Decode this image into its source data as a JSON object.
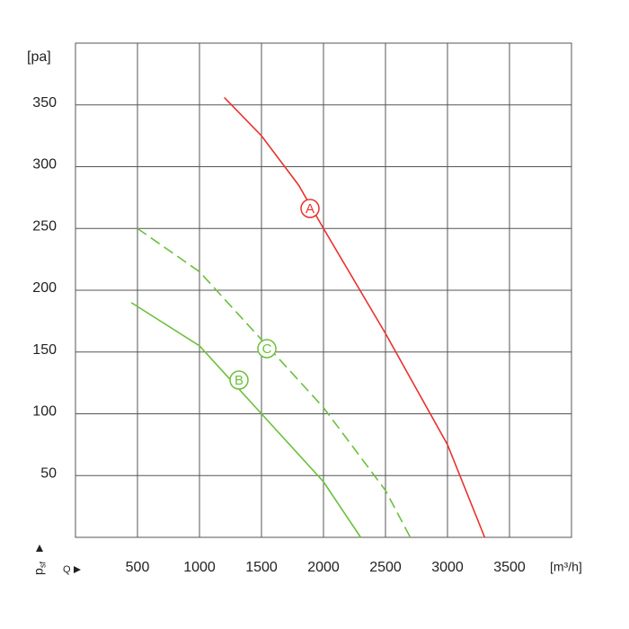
{
  "chart_data": {
    "type": "line",
    "xlabel": "Q",
    "ylabel": "p",
    "ylabel_sub": "sf",
    "x_unit": "[m³/h]",
    "y_unit": "[pa]",
    "xlim": [
      0,
      4000
    ],
    "xticks": [
      500,
      1000,
      1500,
      2000,
      2500,
      3000,
      3500
    ],
    "ylim": [
      0,
      400
    ],
    "yticks": [
      50,
      100,
      150,
      200,
      250,
      300,
      350
    ],
    "grid": true,
    "series": [
      {
        "name": "A",
        "color": "#e8312f",
        "line_style": "solid",
        "x": [
          1200,
          1500,
          1800,
          2000,
          2500,
          3000,
          3300
        ],
        "values": [
          356,
          325,
          285,
          250,
          165,
          75,
          0
        ]
      },
      {
        "name": "B",
        "color": "#6cbf3c",
        "line_style": "solid",
        "x": [
          450,
          1000,
          1500,
          2000,
          2300
        ],
        "values": [
          190,
          155,
          100,
          45,
          0
        ]
      },
      {
        "name": "C",
        "color": "#6cbf3c",
        "line_style": "dashed",
        "x": [
          500,
          1000,
          1500,
          2000,
          2500,
          2700
        ],
        "values": [
          250,
          215,
          160,
          105,
          38,
          0
        ]
      }
    ]
  }
}
